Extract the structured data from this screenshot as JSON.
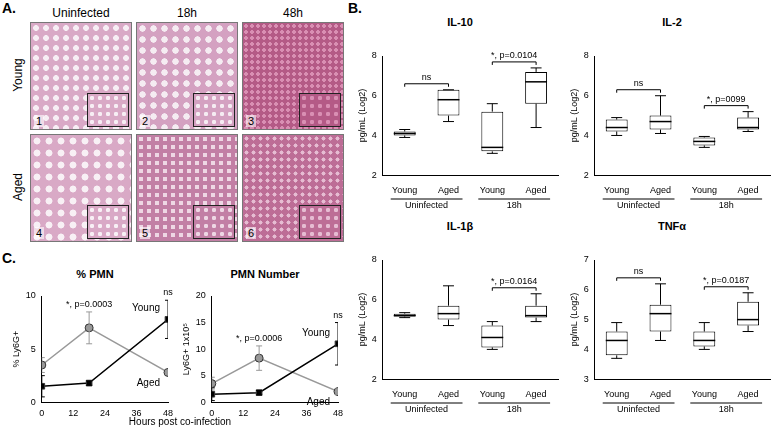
{
  "panel_labels": [
    "A.",
    "B.",
    "C."
  ],
  "histology": {
    "columns": [
      "Uninfected",
      "18h",
      "48h"
    ],
    "rows": [
      "Young",
      "Aged"
    ],
    "image_numbers": [
      [
        1,
        2,
        3
      ],
      [
        4,
        5,
        6
      ]
    ]
  },
  "chart_data": [
    {
      "type": "box",
      "title": "IL-10",
      "y_label": "pg/mL (Log2)",
      "categories": [
        "Young",
        "Aged",
        "Young",
        "Aged"
      ],
      "groups": [
        {
          "label": "Uninfected",
          "span": [
            0,
            1
          ]
        },
        {
          "label": "18h",
          "span": [
            2,
            3
          ]
        }
      ],
      "min": [
        3.9,
        4.7,
        3.1,
        4.4
      ],
      "q1": [
        4.0,
        5.0,
        3.2,
        5.6
      ],
      "values": [
        4.1,
        5.8,
        3.4,
        6.7
      ],
      "q3": [
        4.2,
        6.3,
        5.2,
        7.2
      ],
      "max": [
        4.3,
        6.3,
        5.6,
        7.4
      ],
      "ylim": [
        2,
        8
      ],
      "yticks": [
        2,
        4,
        6,
        8
      ],
      "grid": false,
      "annotations": [
        {
          "text": "ns",
          "between": [
            0,
            1
          ]
        },
        {
          "text": "*, p=0.0104",
          "between": [
            2,
            3
          ]
        }
      ]
    },
    {
      "type": "box",
      "title": "IL-2",
      "y_label": "pg/mL (Log2)",
      "categories": [
        "Young",
        "Aged",
        "Young",
        "Aged"
      ],
      "groups": [
        {
          "label": "Uninfected",
          "span": [
            0,
            1
          ]
        },
        {
          "label": "18h",
          "span": [
            2,
            3
          ]
        }
      ],
      "min": [
        4.0,
        4.1,
        3.4,
        4.2
      ],
      "q1": [
        4.2,
        4.3,
        3.5,
        4.3
      ],
      "values": [
        4.4,
        4.7,
        3.7,
        4.4
      ],
      "q3": [
        4.8,
        5.0,
        3.9,
        4.9
      ],
      "max": [
        4.9,
        6.0,
        3.95,
        5.2
      ],
      "ylim": [
        2,
        8
      ],
      "yticks": [
        2,
        4,
        6,
        8
      ],
      "grid": false,
      "annotations": [
        {
          "text": "ns",
          "between": [
            0,
            1
          ]
        },
        {
          "text": "*, p=0099",
          "between": [
            2,
            3
          ]
        }
      ]
    },
    {
      "type": "box",
      "title": "IL-1β",
      "y_label": "pg/mL (Log2)",
      "categories": [
        "Young",
        "Aged",
        "Young",
        "Aged"
      ],
      "groups": [
        {
          "label": "Uninfected",
          "span": [
            0,
            1
          ]
        },
        {
          "label": "18h",
          "span": [
            2,
            3
          ]
        }
      ],
      "min": [
        5.1,
        4.7,
        3.5,
        4.9
      ],
      "q1": [
        5.15,
        5.0,
        3.6,
        5.1
      ],
      "values": [
        5.2,
        5.3,
        4.1,
        5.2
      ],
      "q3": [
        5.3,
        5.7,
        4.7,
        5.7
      ],
      "max": [
        5.35,
        6.7,
        4.9,
        6.3
      ],
      "ylim": [
        2,
        8
      ],
      "yticks": [
        2,
        4,
        6,
        8
      ],
      "grid": false,
      "annotations": [
        {
          "text": "*, p=0.0164",
          "between": [
            2,
            3
          ]
        }
      ]
    },
    {
      "type": "box",
      "title": "TNFα",
      "y_label": "pg/mL (Log2)",
      "categories": [
        "Young",
        "Aged",
        "Young",
        "Aged"
      ],
      "groups": [
        {
          "label": "Uninfected",
          "span": [
            0,
            1
          ]
        },
        {
          "label": "18h",
          "span": [
            2,
            3
          ]
        }
      ],
      "min": [
        3.7,
        4.3,
        4.0,
        4.6
      ],
      "q1": [
        3.8,
        4.6,
        4.1,
        4.8
      ],
      "values": [
        4.3,
        5.2,
        4.3,
        5.0
      ],
      "q3": [
        4.6,
        5.5,
        4.6,
        5.6
      ],
      "max": [
        4.9,
        6.2,
        4.9,
        5.9
      ],
      "ylim": [
        3,
        7
      ],
      "yticks": [
        3,
        4,
        5,
        6,
        7
      ],
      "grid": false,
      "annotations": [
        {
          "text": "ns",
          "between": [
            0,
            1
          ]
        },
        {
          "text": "*, p=0.0187",
          "between": [
            2,
            3
          ]
        }
      ]
    },
    {
      "type": "line",
      "title": "% PMN",
      "x_label": "Hours post co-infection",
      "y_label": "% Ly6G+",
      "x": [
        0,
        18,
        48
      ],
      "xlim": [
        0,
        48
      ],
      "xticks": [
        0,
        12,
        24,
        36,
        48
      ],
      "ylim": [
        0,
        10
      ],
      "yticks": [
        0,
        5,
        10
      ],
      "grid": false,
      "series": [
        {
          "name": "Young",
          "color": "#000000",
          "marker": "square",
          "values": [
            1.5,
            1.8,
            7.8
          ],
          "errors": [
            1.0,
            0.2,
            1.8
          ]
        },
        {
          "name": "Aged",
          "color": "#999999",
          "marker": "circle",
          "values": [
            3.5,
            7.0,
            2.8
          ],
          "errors": [
            0.7,
            1.5,
            0.2
          ]
        }
      ],
      "annotations": [
        {
          "text": "*, p=0.0003",
          "x": 18
        },
        {
          "text": "ns",
          "x": 48
        }
      ]
    },
    {
      "type": "line",
      "title": "PMN Number",
      "y_label": "Ly6G+ 1x10⁵",
      "x": [
        0,
        18,
        48
      ],
      "xlim": [
        0,
        48
      ],
      "xticks": [
        0,
        12,
        24,
        36,
        48
      ],
      "ylim": [
        0,
        20
      ],
      "yticks": [
        0,
        5,
        10,
        15,
        20
      ],
      "grid": false,
      "series": [
        {
          "name": "Young",
          "color": "#000000",
          "marker": "square",
          "values": [
            1.5,
            1.8,
            11.0
          ],
          "errors": [
            1.2,
            0.4,
            4.0
          ]
        },
        {
          "name": "Aged",
          "color": "#999999",
          "marker": "circle",
          "values": [
            3.5,
            8.3,
            2.0
          ],
          "errors": [
            1.2,
            2.3,
            0.5
          ]
        }
      ],
      "annotations": [
        {
          "text": "*, p=0.0006",
          "x": 18
        },
        {
          "text": "ns",
          "x": 48
        }
      ]
    }
  ]
}
